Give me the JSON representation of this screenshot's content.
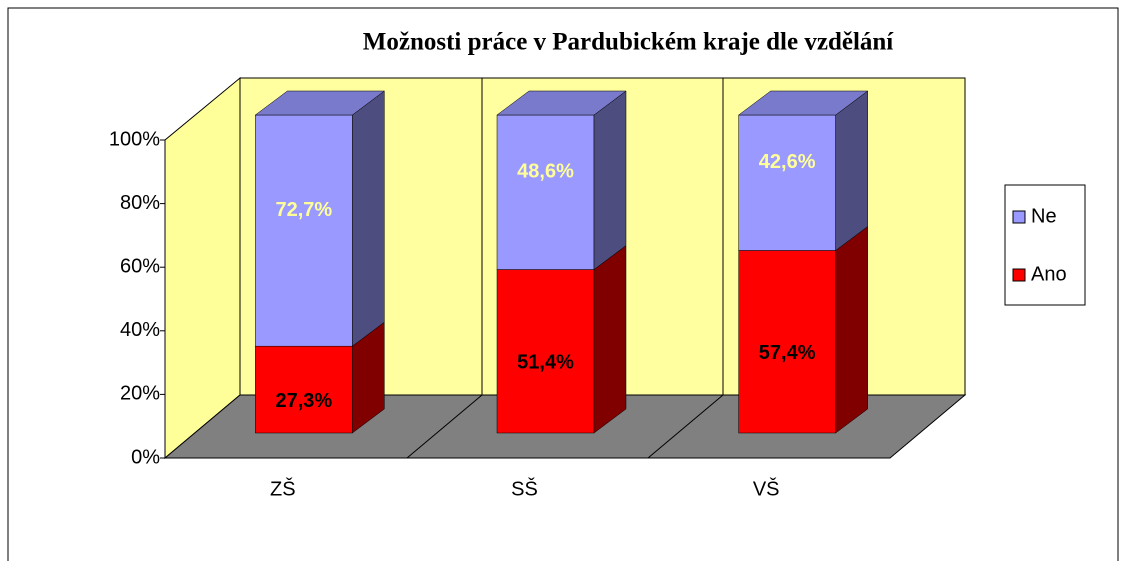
{
  "chart_data": {
    "type": "bar3d_stacked",
    "title": "Možnosti práce v Pardubickém kraje dle vzdělání",
    "categories": [
      "ZŠ",
      "SŠ",
      "VŠ"
    ],
    "series": [
      {
        "name": "Ano",
        "color": "#ff0000",
        "values": [
          27.3,
          51.4,
          57.4
        ],
        "value_labels": [
          "27,3%",
          "51,4%",
          "57,4%"
        ]
      },
      {
        "name": "Ne",
        "color": "#9999ff",
        "values": [
          72.7,
          48.6,
          42.6
        ],
        "value_labels": [
          "72,7%",
          "48,6%",
          "42,6%"
        ]
      }
    ],
    "ylim": [
      0,
      100
    ],
    "yticks": [
      {
        "value": 0,
        "label": "0%"
      },
      {
        "value": 20,
        "label": "20%"
      },
      {
        "value": 40,
        "label": "40%"
      },
      {
        "value": 60,
        "label": "60%"
      },
      {
        "value": 80,
        "label": "80%"
      },
      {
        "value": 100,
        "label": "100%"
      }
    ],
    "legend": "right"
  }
}
